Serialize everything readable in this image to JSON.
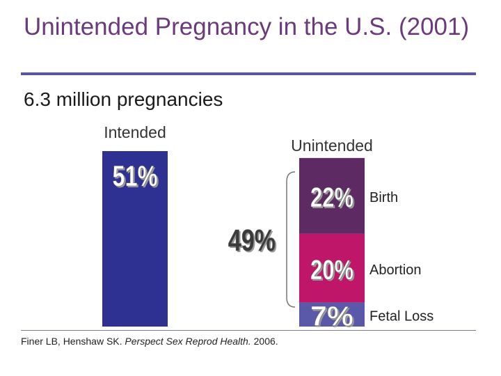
{
  "title": "Unintended Pregnancy in the U.S. (2001)",
  "subtitle": "6.3 million pregnancies",
  "source": {
    "authors": "Finer LB, Henshaw SK.",
    "journal": "Perspect Sex Reprod Health.",
    "year": "2006."
  },
  "chart_data": {
    "type": "bar",
    "title": "Unintended Pregnancy in the U.S. (2001)",
    "subtitle": "6.3 million pregnancies",
    "unit": "%",
    "categories": [
      "Intended",
      "Unintended"
    ],
    "series": [
      {
        "name": "Intended",
        "category": "Intended",
        "value": 51,
        "label": "51%",
        "color": "#2e3192"
      },
      {
        "name": "Fetal Loss",
        "category": "Unintended",
        "value": 7,
        "label": "7%",
        "color": "#5a58a8"
      },
      {
        "name": "Abortion",
        "category": "Unintended",
        "value": 20,
        "label": "20%",
        "color": "#c0166a"
      },
      {
        "name": "Birth",
        "category": "Unintended",
        "value": 22,
        "label": "22%",
        "color": "#5e2a63"
      }
    ],
    "total_unintended": {
      "value": 49,
      "label": "49%"
    },
    "ylim": [
      0,
      51
    ]
  }
}
